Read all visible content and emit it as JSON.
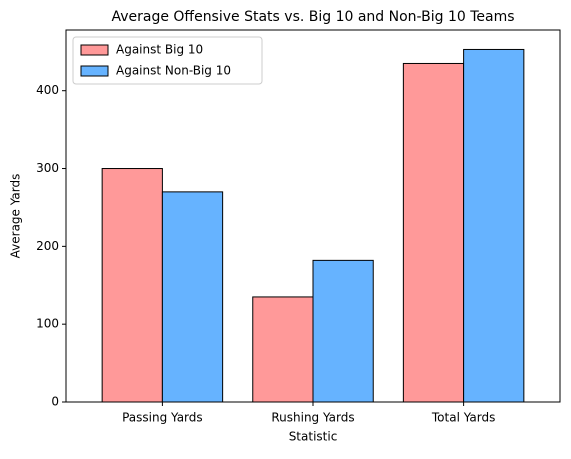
{
  "chart_data": {
    "type": "bar",
    "title": "Average Offensive Stats vs. Big 10 and Non-Big 10 Teams",
    "x_label": "Statistic",
    "y_label": "Average Yards",
    "categories": [
      "Passing Yards",
      "Rushing Yards",
      "Total Yards"
    ],
    "series": [
      {
        "name": "Against Big 10",
        "color": "#ff9999",
        "values": [
          300,
          135,
          435
        ]
      },
      {
        "name": "Against Non-Big 10",
        "color": "#66b3ff",
        "values": [
          270,
          182,
          453
        ]
      }
    ],
    "ylim": [
      0,
      478
    ],
    "yticks": [
      0,
      100,
      200,
      300,
      400
    ],
    "legend": "upper left"
  }
}
